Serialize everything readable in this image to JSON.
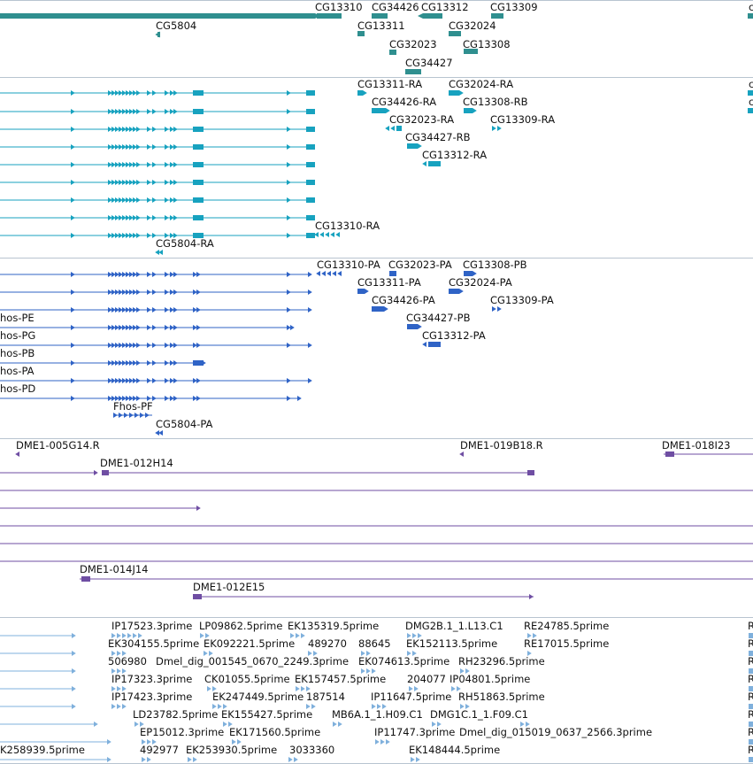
{
  "colors": {
    "gene": "#2f8f8f",
    "transcript": "#17a2bf",
    "protein": "#2f63c6",
    "clone": "#6f4ea3",
    "est": "#7fb0dc",
    "separator": "#b8c4d0"
  },
  "genes": [
    "CG13310",
    "CG34426",
    "CG13312",
    "CG13309",
    "CG5804",
    "CG13311",
    "CG32024",
    "CG32023",
    "CG13308",
    "CG34427"
  ],
  "transcripts": [
    "CG13311-RA",
    "CG32024-RA",
    "CG34426-RA",
    "CG13308-RB",
    "CG32023-RA",
    "CG13309-RA",
    "CG34427-RB",
    "CG13312-RA",
    "CG13310-RA",
    "CG5804-RA"
  ],
  "proteins": [
    "CG13310-PA",
    "CG32023-PA",
    "CG13308-PB",
    "CG13311-PA",
    "CG32024-PA",
    "CG34426-PA",
    "CG13309-PA",
    "CG34427-PB",
    "CG13312-PA",
    "hos-PE",
    "hos-PG",
    "hos-PB",
    "hos-PA",
    "hos-PD",
    "Fhos-PF",
    "CG5804-PA"
  ],
  "clones": [
    "DME1-005G14.R",
    "DME1-019B18.R",
    "DME1-018I23",
    "DME1-012H14",
    "DME1-014J14",
    "DME1-012E15"
  ],
  "ests": [
    "IP17523.3prime",
    "LP09862.5prime",
    "EK135319.5prime",
    "DMG2B.1_1.L13.C1",
    "RE24785.5prime",
    "EK304155.5prime",
    "EK092221.5prime",
    "489270",
    "88645",
    "EK152113.5prime",
    "RE17015.5prime",
    "506980",
    "Dmel_dig_001545_0670_2249.3prime",
    "EK074613.5prime",
    "RH23296.5prime",
    "IP17323.3prime",
    "CK01055.5prime",
    "EK157457.5prime",
    "204077",
    "IP04801.5prime",
    "IP17423.3prime",
    "EK247449.5prime",
    "187514",
    "IP11647.5prime",
    "RH51863.5prime",
    "LD23782.5prime",
    "EK155427.5prime",
    "MB6A.1_1.H09.C1",
    "DMG1C.1_1.F09.C1",
    "EP15012.3prime",
    "EK171560.5prime",
    "IP11747.3prime",
    "Dmel_dig_015019_0637_2566.3prime",
    "K258939.5prime",
    "492977",
    "EK253930.5prime",
    "3033360",
    "EK148444.5prime"
  ],
  "edge": [
    "c",
    "c",
    "c",
    "R",
    "R",
    "R",
    "R",
    "R",
    "R",
    "R",
    "R"
  ]
}
